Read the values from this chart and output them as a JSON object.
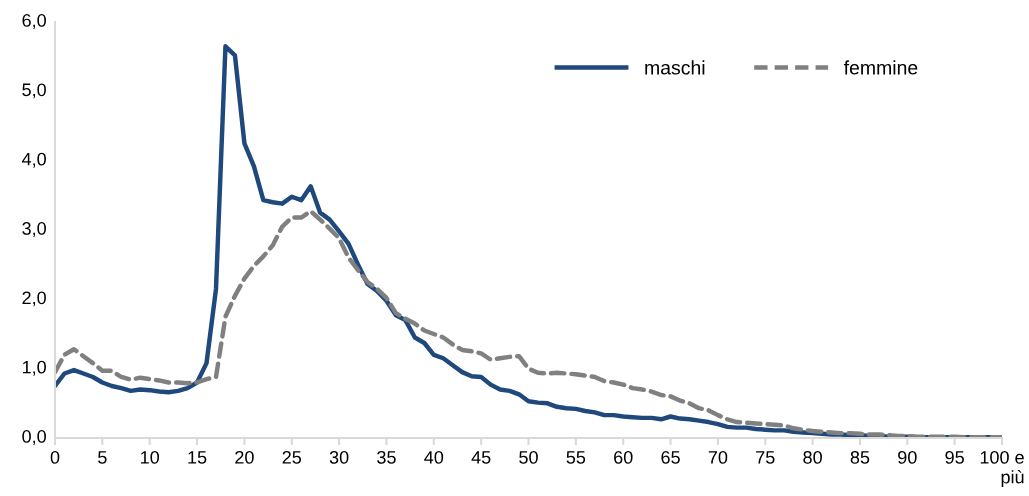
{
  "chart_data": {
    "type": "line",
    "categories": [
      "0",
      null,
      null,
      null,
      null,
      "5",
      null,
      null,
      null,
      null,
      "10",
      null,
      null,
      null,
      null,
      "15",
      null,
      null,
      null,
      null,
      "20",
      null,
      null,
      null,
      null,
      "25",
      null,
      null,
      null,
      null,
      "30",
      null,
      null,
      null,
      null,
      "35",
      null,
      null,
      null,
      null,
      "40",
      null,
      null,
      null,
      null,
      "45",
      null,
      null,
      null,
      null,
      "50",
      null,
      null,
      null,
      null,
      "55",
      null,
      null,
      null,
      null,
      "60",
      null,
      null,
      null,
      null,
      "65",
      null,
      null,
      null,
      null,
      "70",
      null,
      null,
      null,
      null,
      "75",
      null,
      null,
      null,
      null,
      "80",
      null,
      null,
      null,
      null,
      "85",
      null,
      null,
      null,
      null,
      "90",
      null,
      null,
      null,
      null,
      "95",
      null,
      null,
      null,
      null,
      "100 e più"
    ],
    "series": [
      {
        "name": "maschi",
        "color": "#1f497d",
        "line_style": "solid",
        "values": [
          0.75,
          0.93,
          0.98,
          0.93,
          0.88,
          0.8,
          0.75,
          0.72,
          0.68,
          0.7,
          0.69,
          0.67,
          0.66,
          0.68,
          0.72,
          0.8,
          1.08,
          2.15,
          5.65,
          5.52,
          4.25,
          3.92,
          3.43,
          3.4,
          3.38,
          3.48,
          3.43,
          3.63,
          3.25,
          3.15,
          2.98,
          2.8,
          2.5,
          2.22,
          2.12,
          1.98,
          1.77,
          1.7,
          1.45,
          1.37,
          1.2,
          1.15,
          1.05,
          0.95,
          0.89,
          0.88,
          0.77,
          0.7,
          0.68,
          0.63,
          0.53,
          0.51,
          0.5,
          0.45,
          0.43,
          0.42,
          0.39,
          0.37,
          0.33,
          0.33,
          0.31,
          0.3,
          0.29,
          0.29,
          0.27,
          0.31,
          0.28,
          0.27,
          0.25,
          0.23,
          0.2,
          0.16,
          0.15,
          0.15,
          0.13,
          0.12,
          0.11,
          0.11,
          0.09,
          0.08,
          0.07,
          0.06,
          0.05,
          0.05,
          0.04,
          0.04,
          0.03,
          0.03,
          0.02,
          0.02,
          0.02,
          0.01,
          0.01,
          0.01,
          0.01,
          0.01,
          0.01,
          0.01,
          0.01,
          0.01,
          0.01
        ]
      },
      {
        "name": "femmine",
        "color": "#808080",
        "line_style": "dashed",
        "values": [
          0.95,
          1.2,
          1.28,
          1.18,
          1.08,
          0.97,
          0.97,
          0.88,
          0.84,
          0.87,
          0.85,
          0.83,
          0.8,
          0.8,
          0.79,
          0.8,
          0.85,
          0.88,
          1.75,
          2.05,
          2.3,
          2.48,
          2.62,
          2.78,
          3.05,
          3.18,
          3.18,
          3.27,
          3.15,
          3.02,
          2.88,
          2.6,
          2.42,
          2.25,
          2.15,
          2.02,
          1.8,
          1.72,
          1.65,
          1.55,
          1.5,
          1.45,
          1.35,
          1.27,
          1.25,
          1.22,
          1.13,
          1.15,
          1.17,
          1.18,
          1.0,
          0.94,
          0.93,
          0.94,
          0.93,
          0.92,
          0.9,
          0.88,
          0.82,
          0.8,
          0.77,
          0.72,
          0.7,
          0.67,
          0.62,
          0.6,
          0.54,
          0.5,
          0.43,
          0.4,
          0.33,
          0.27,
          0.23,
          0.22,
          0.21,
          0.2,
          0.19,
          0.18,
          0.14,
          0.12,
          0.1,
          0.09,
          0.08,
          0.07,
          0.07,
          0.06,
          0.05,
          0.05,
          0.04,
          0.03,
          0.03,
          0.02,
          0.02,
          0.02,
          0.02,
          0.02,
          0.01,
          0.01,
          0.01,
          0.01,
          0.01
        ]
      }
    ],
    "ylim": [
      0,
      6
    ],
    "yticks": [
      {
        "value": 0,
        "label": "0,0"
      },
      {
        "value": 1,
        "label": "1,0"
      },
      {
        "value": 2,
        "label": "2,0"
      },
      {
        "value": 3,
        "label": "3,0"
      },
      {
        "value": 4,
        "label": "4,0"
      },
      {
        "value": 5,
        "label": "5,0"
      },
      {
        "value": 6,
        "label": "6,0"
      }
    ],
    "legend": "top right",
    "grid": false,
    "marker": "none"
  }
}
